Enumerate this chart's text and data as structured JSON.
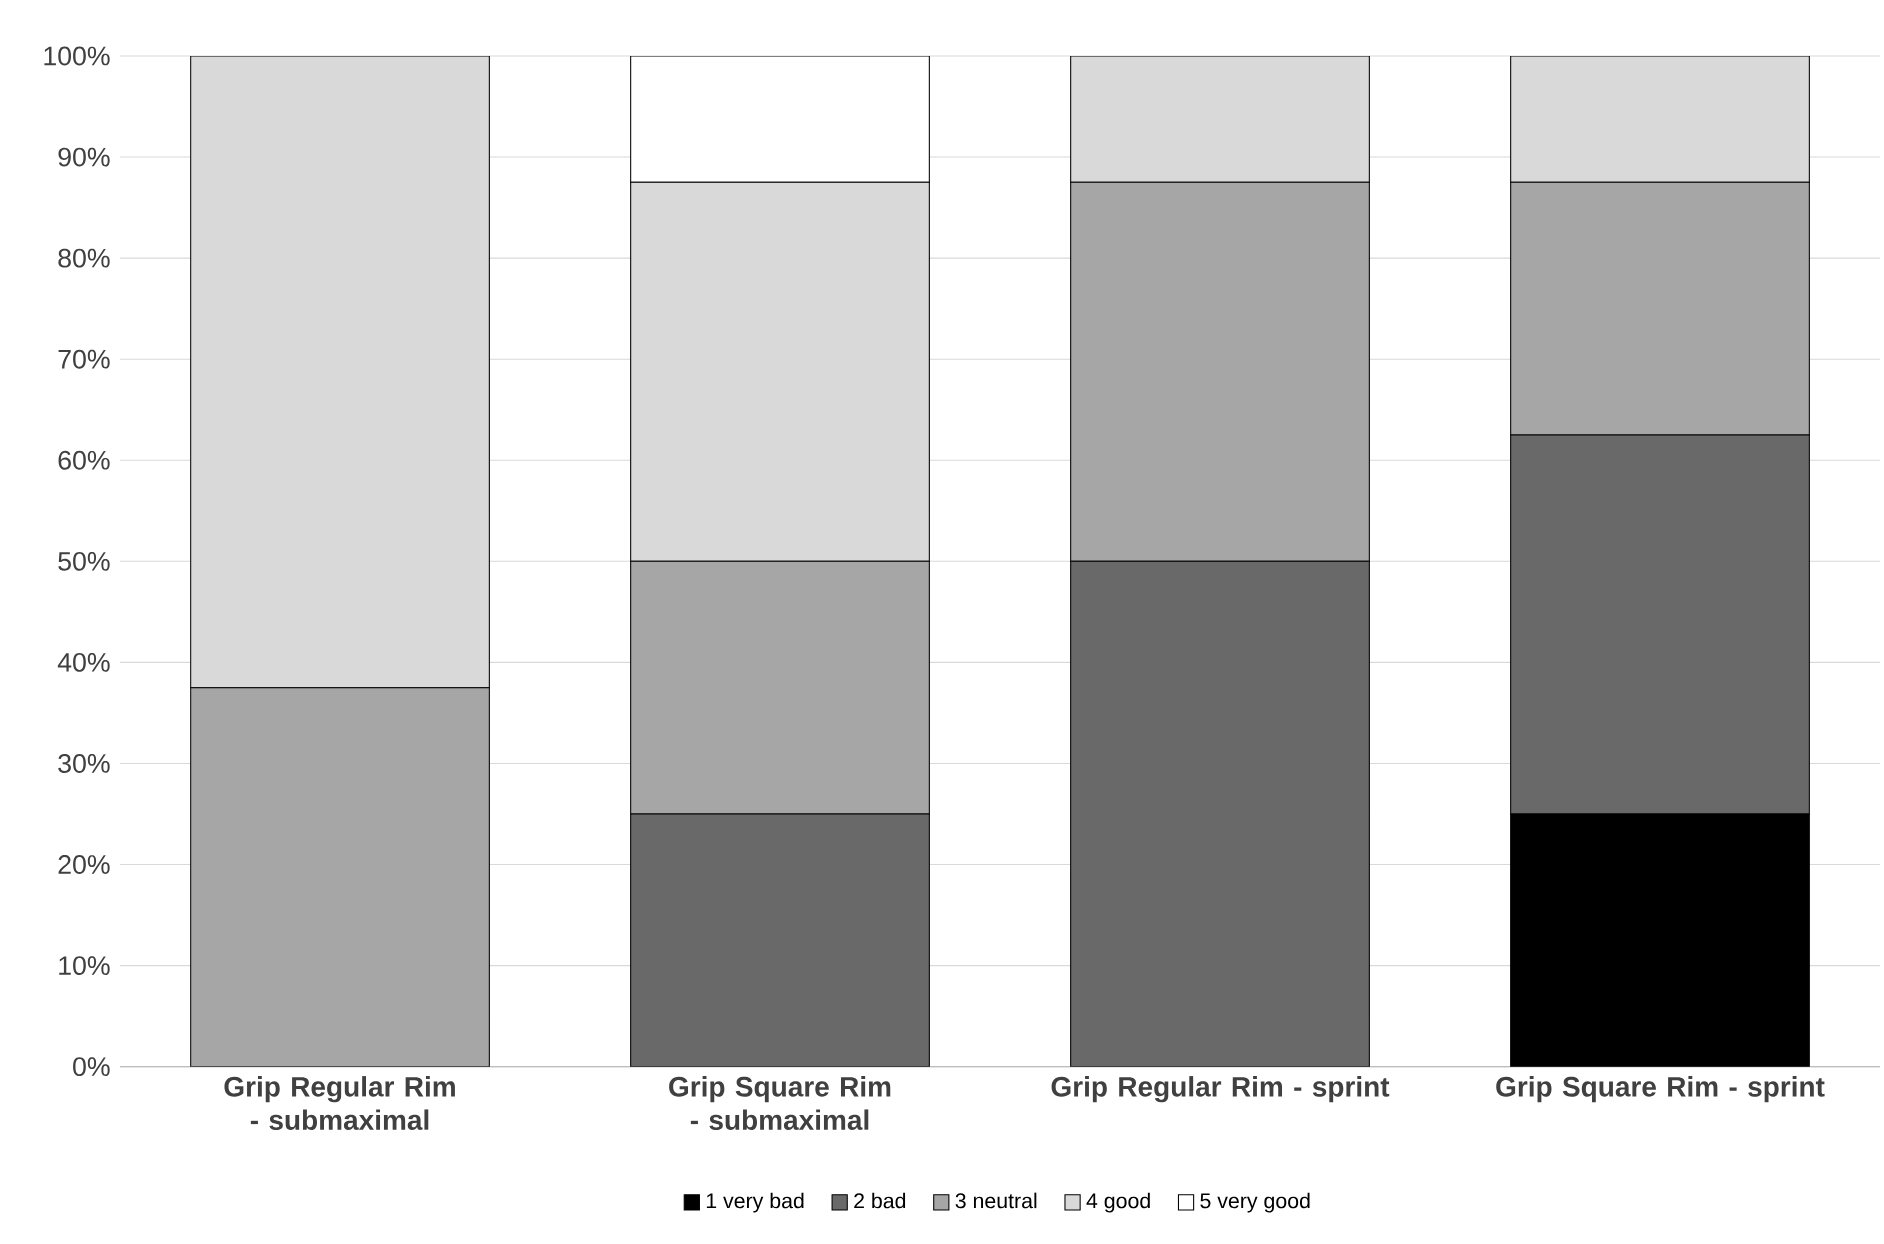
{
  "chart_data": {
    "type": "bar",
    "stacked": true,
    "categories": [
      "Grip Regular Rim - submaximal",
      "Grip Square Rim - submaximal",
      "Grip Regular Rim - sprint",
      "Grip Square Rim - sprint"
    ],
    "series": [
      {
        "name": "1 very bad",
        "color": "#000000",
        "values": [
          0,
          0,
          0,
          25
        ]
      },
      {
        "name": "2 bad",
        "color": "#696969",
        "values": [
          0,
          25,
          50,
          37.5
        ]
      },
      {
        "name": "3 neutral",
        "color": "#a6a6a6",
        "values": [
          37.5,
          25,
          37.5,
          25
        ]
      },
      {
        "name": "4 good",
        "color": "#d9d9d9",
        "values": [
          62.5,
          37.5,
          12.5,
          12.5
        ]
      },
      {
        "name": "5 very good",
        "color": "#ffffff",
        "values": [
          0,
          12.5,
          0,
          0
        ]
      }
    ],
    "ylim": [
      0,
      100
    ],
    "yticks": [
      {
        "value": 0,
        "label": "0%"
      },
      {
        "value": 10,
        "label": "10%"
      },
      {
        "value": 20,
        "label": "20%"
      },
      {
        "value": 30,
        "label": "30%"
      },
      {
        "value": 40,
        "label": "40%"
      },
      {
        "value": 50,
        "label": "50%"
      },
      {
        "value": 60,
        "label": "60%"
      },
      {
        "value": 70,
        "label": "70%"
      },
      {
        "value": 80,
        "label": "80%"
      },
      {
        "value": 90,
        "label": "90%"
      },
      {
        "value": 100,
        "label": "100%"
      }
    ],
    "grid": "y",
    "legend": "bottom"
  }
}
